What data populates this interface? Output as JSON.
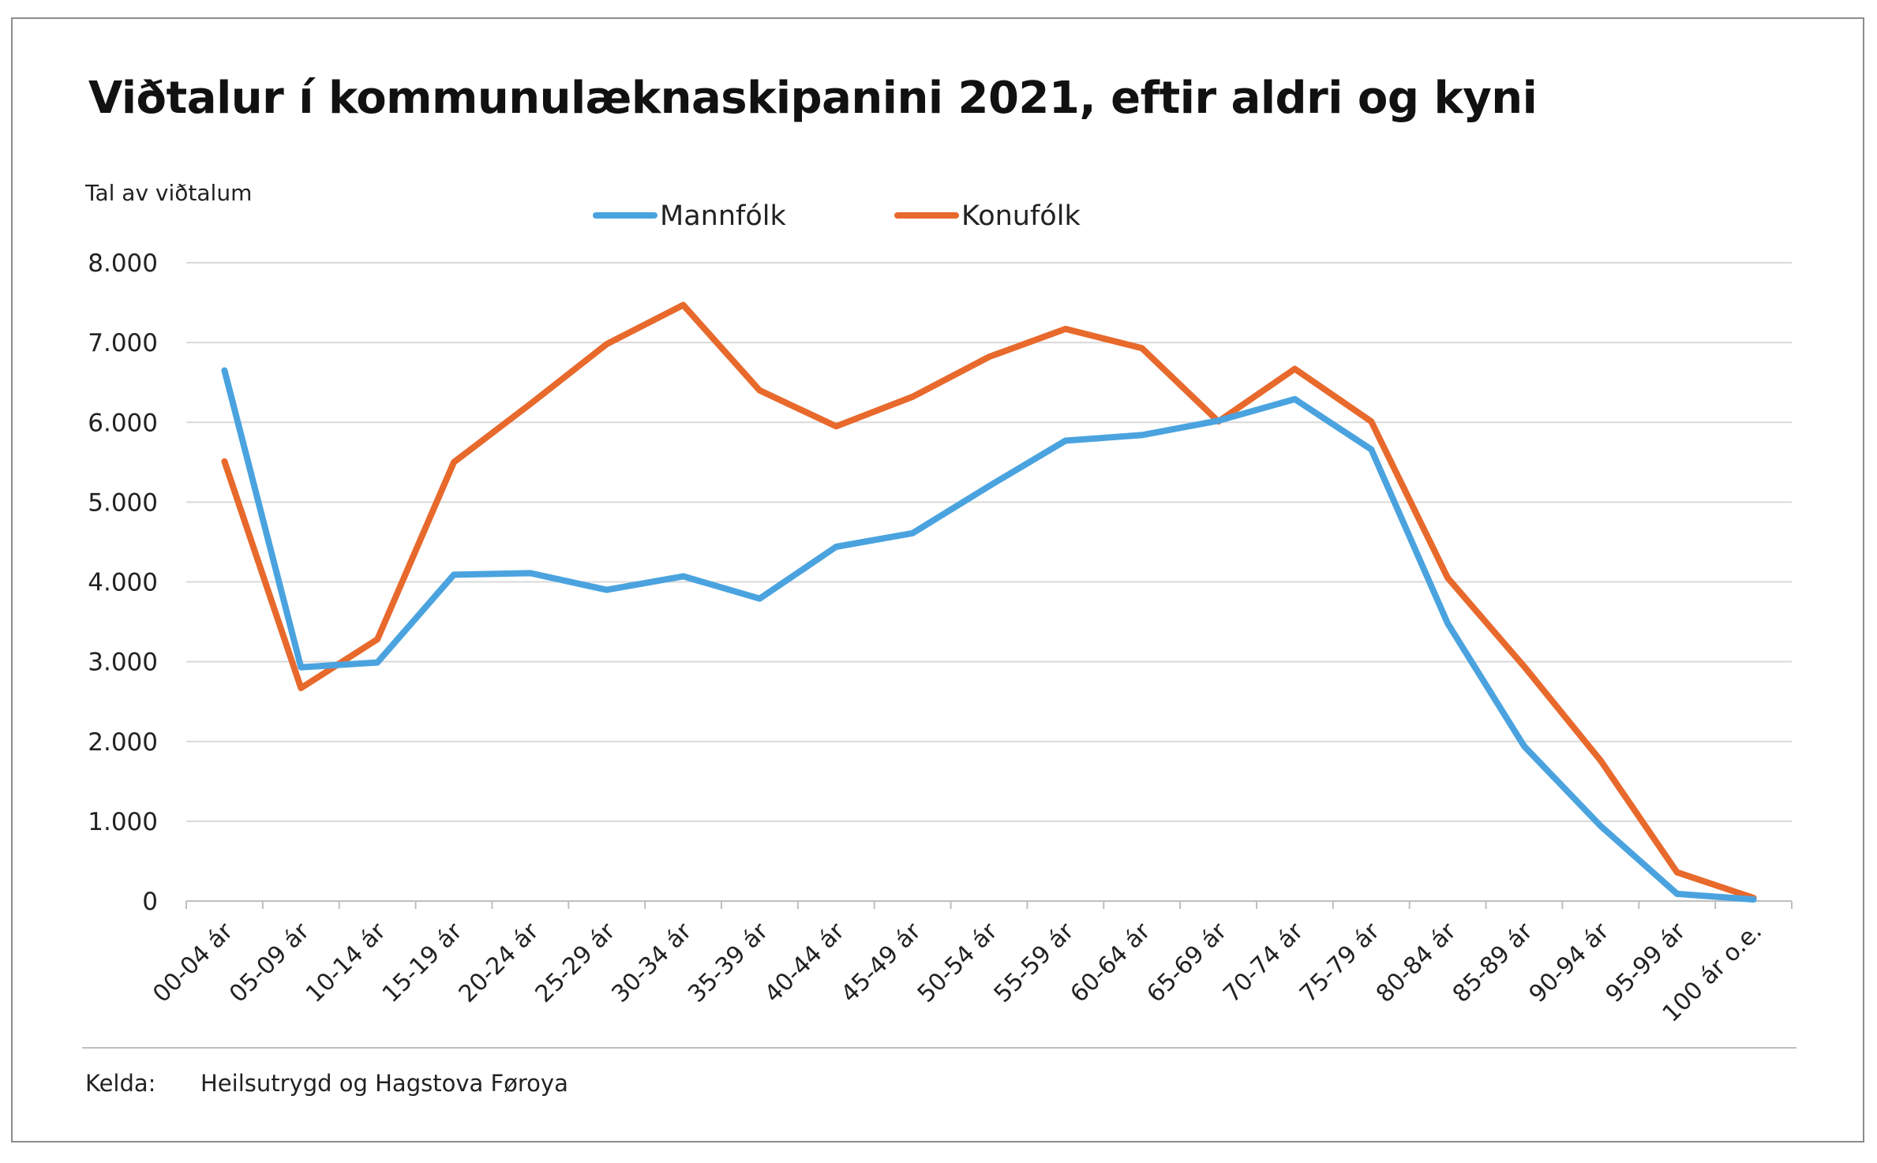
{
  "chart_data": {
    "type": "line",
    "title": "Viðtalur í kommunulæknaskipanini 2021, eftir aldri og kyni",
    "ylabel": "Tal av viðtalum",
    "xlabel": "",
    "ylim": [
      0,
      8000
    ],
    "yticks": [
      {
        "value": 0,
        "label": "0"
      },
      {
        "value": 1000,
        "label": "1.000"
      },
      {
        "value": 2000,
        "label": "2.000"
      },
      {
        "value": 3000,
        "label": "3.000"
      },
      {
        "value": 4000,
        "label": "4.000"
      },
      {
        "value": 5000,
        "label": "5.000"
      },
      {
        "value": 6000,
        "label": "6.000"
      },
      {
        "value": 7000,
        "label": "7.000"
      },
      {
        "value": 8000,
        "label": "8.000"
      }
    ],
    "grid": true,
    "legend_position": "top-center",
    "categories": [
      "00-04 ár",
      "05-09 ár",
      "10-14 ár",
      "15-19 ár",
      "20-24 ár",
      "25-29 ár",
      "30-34 ár",
      "35-39 ár",
      "40-44 ár",
      "45-49 ár",
      "50-54 ár",
      "55-59 ár",
      "60-64 ár",
      "65-69 ár",
      "70-74 ár",
      "75-79 ár",
      "80-84 ár",
      "85-89 ár",
      "90-94 ár",
      "95-99 ár",
      "100 ár o.e."
    ],
    "series": [
      {
        "name": "Mannfólk",
        "color": "#4aa3df",
        "values": [
          6650,
          2930,
          2990,
          4090,
          4110,
          3900,
          4070,
          3790,
          4440,
          4610,
          5200,
          5770,
          5840,
          6020,
          6290,
          5660,
          3480,
          1940,
          940,
          90,
          20
        ]
      },
      {
        "name": "Konufólk",
        "color": "#e8692c",
        "values": [
          5510,
          2670,
          3280,
          5500,
          6230,
          6980,
          7470,
          6400,
          5950,
          6320,
          6820,
          7170,
          6930,
          6010,
          6670,
          6010,
          4050,
          2940,
          1760,
          360,
          40
        ]
      }
    ]
  },
  "source": {
    "label": "Kelda:",
    "text": "Heilsutrygd og Hagstova Føroya"
  },
  "colors": {
    "grid": "#d9d9d9",
    "axis": "#bfbfbf",
    "text": "#222222"
  }
}
